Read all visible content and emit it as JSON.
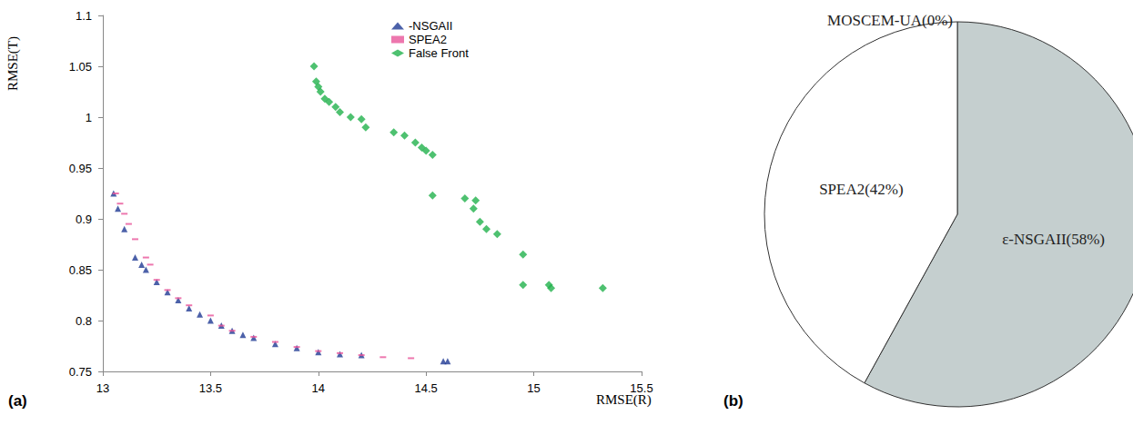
{
  "chart_data": [
    {
      "type": "scatter",
      "title": "(a)",
      "x_label": "RMSE(R)",
      "y_label": "RMSE(T)",
      "xlim": [
        13,
        15.5
      ],
      "xticks": [
        13,
        13.5,
        14,
        14.5,
        15,
        15.5
      ],
      "ylim": [
        0.75,
        1.1
      ],
      "yticks": [
        0.75,
        0.8,
        0.85,
        0.9,
        0.95,
        1,
        1.05,
        1.1
      ],
      "grid": false,
      "legend": "upper right",
      "series": [
        {
          "name": "-NSGAII",
          "color": "#1f3a93",
          "marker": "triangle",
          "values": [
            [
              13.05,
              0.925
            ],
            [
              13.07,
              0.91
            ],
            [
              13.1,
              0.89
            ],
            [
              13.15,
              0.862
            ],
            [
              13.18,
              0.855
            ],
            [
              13.2,
              0.85
            ],
            [
              13.25,
              0.838
            ],
            [
              13.3,
              0.828
            ],
            [
              13.35,
              0.82
            ],
            [
              13.4,
              0.812
            ],
            [
              13.45,
              0.806
            ],
            [
              13.5,
              0.8
            ],
            [
              13.55,
              0.795
            ],
            [
              13.6,
              0.79
            ],
            [
              13.65,
              0.786
            ],
            [
              13.7,
              0.783
            ],
            [
              13.8,
              0.777
            ],
            [
              13.9,
              0.773
            ],
            [
              14.0,
              0.769
            ],
            [
              14.1,
              0.767
            ],
            [
              14.2,
              0.766
            ],
            [
              14.58,
              0.76
            ],
            [
              14.6,
              0.76
            ]
          ]
        },
        {
          "name": "SPEA2",
          "color": "#e8559a",
          "marker": "dash",
          "values": [
            [
              13.06,
              0.925
            ],
            [
              13.08,
              0.915
            ],
            [
              13.1,
              0.905
            ],
            [
              13.12,
              0.895
            ],
            [
              13.15,
              0.88
            ],
            [
              13.2,
              0.862
            ],
            [
              13.22,
              0.855
            ],
            [
              13.25,
              0.84
            ],
            [
              13.3,
              0.83
            ],
            [
              13.35,
              0.822
            ],
            [
              13.4,
              0.815
            ],
            [
              13.5,
              0.805
            ],
            [
              13.55,
              0.795
            ],
            [
              13.6,
              0.79
            ],
            [
              13.7,
              0.784
            ],
            [
              13.8,
              0.779
            ],
            [
              13.9,
              0.774
            ],
            [
              14.0,
              0.77
            ],
            [
              14.1,
              0.768
            ],
            [
              14.2,
              0.766
            ],
            [
              14.3,
              0.764
            ],
            [
              14.43,
              0.763
            ]
          ]
        },
        {
          "name": "False Front",
          "color": "#22b14c",
          "marker": "diamond",
          "values": [
            [
              13.98,
              1.05
            ],
            [
              13.99,
              1.035
            ],
            [
              14.0,
              1.03
            ],
            [
              14.01,
              1.025
            ],
            [
              14.03,
              1.018
            ],
            [
              14.05,
              1.015
            ],
            [
              14.08,
              1.01
            ],
            [
              14.1,
              1.005
            ],
            [
              14.15,
              1.0
            ],
            [
              14.2,
              0.998
            ],
            [
              14.22,
              0.99
            ],
            [
              14.35,
              0.985
            ],
            [
              14.4,
              0.982
            ],
            [
              14.45,
              0.975
            ],
            [
              14.48,
              0.97
            ],
            [
              14.5,
              0.967
            ],
            [
              14.53,
              0.963
            ],
            [
              14.53,
              0.923
            ],
            [
              14.68,
              0.92
            ],
            [
              14.72,
              0.91
            ],
            [
              14.73,
              0.918
            ],
            [
              14.75,
              0.897
            ],
            [
              14.78,
              0.89
            ],
            [
              14.83,
              0.885
            ],
            [
              14.95,
              0.865
            ],
            [
              14.95,
              0.835
            ],
            [
              15.07,
              0.835
            ],
            [
              15.08,
              0.832
            ],
            [
              15.32,
              0.832
            ]
          ]
        }
      ]
    },
    {
      "type": "pie",
      "title": "(b)",
      "categories": [
        "MOSCEM-UA",
        "ε-NSGAII",
        "SPEA2"
      ],
      "values": [
        0,
        58,
        42
      ],
      "value_labels": [
        "MOSCEM-UA(0%)",
        "ε-NSGAII(58%)",
        "SPEA2(42%)"
      ],
      "colors": [
        "#ffffff",
        "#c5cfcf",
        "#ffffff"
      ],
      "data_labels": true
    }
  ]
}
